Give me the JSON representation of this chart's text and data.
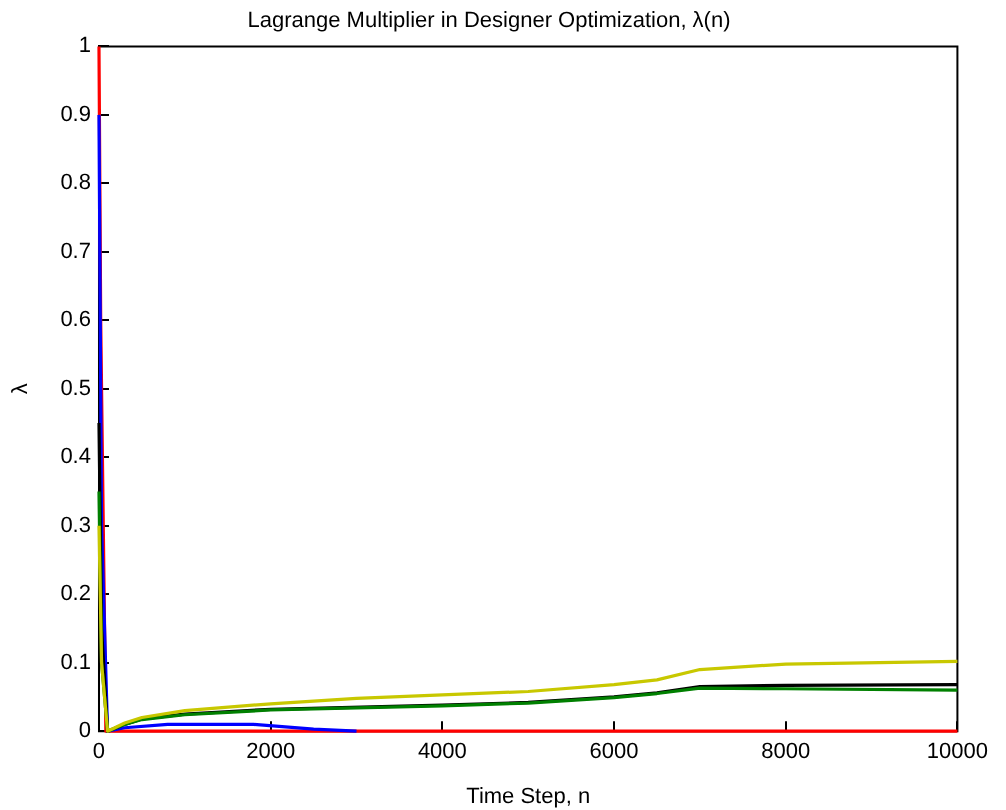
{
  "chart_data": {
    "type": "line",
    "title": "Lagrange Multiplier in Designer Optimization, λ(n)",
    "xlabel": "Time Step, n",
    "ylabel": "λ",
    "xlim": [
      0,
      10000
    ],
    "xticks": [
      0,
      2000,
      4000,
      6000,
      8000,
      10000
    ],
    "ylim": [
      0,
      1
    ],
    "yticks": [
      0,
      0.1,
      0.2,
      0.3,
      0.4,
      0.5,
      0.6,
      0.7,
      0.8,
      0.9,
      1
    ],
    "grid": false,
    "legend": false,
    "marker": "none",
    "line_style": "solid",
    "series": [
      {
        "color": "#c8c800",
        "x": [
          0,
          30,
          100,
          300,
          500,
          1000,
          2000,
          3000,
          4000,
          5000,
          6000,
          6500,
          7000,
          8000,
          10000
        ],
        "values": [
          0.3,
          0.1,
          0,
          0.012,
          0.02,
          0.03,
          0.04,
          0.048,
          0.053,
          0.058,
          0.068,
          0.075,
          0.09,
          0.098,
          0.102
        ]
      },
      {
        "color": "#008000",
        "x": [
          0,
          30,
          100,
          300,
          500,
          1000,
          2000,
          4000,
          5000,
          6000,
          6500,
          7000,
          8000,
          10000
        ],
        "values": [
          0.35,
          0.1,
          0,
          0.01,
          0.017,
          0.024,
          0.031,
          0.037,
          0.041,
          0.049,
          0.055,
          0.063,
          0.062,
          0.06
        ]
      },
      {
        "color": "#000000",
        "x": [
          0,
          30,
          100,
          300,
          500,
          1000,
          2000,
          4000,
          5000,
          6000,
          6500,
          7000,
          8000,
          10000
        ],
        "values": [
          0.45,
          0.15,
          0,
          0.01,
          0.018,
          0.025,
          0.032,
          0.038,
          0.042,
          0.05,
          0.056,
          0.065,
          0.067,
          0.068
        ]
      },
      {
        "color": "#0000ff",
        "x": [
          0,
          30,
          100,
          300,
          800,
          1800,
          2500,
          3000
        ],
        "values": [
          0.9,
          0.3,
          0,
          0.005,
          0.01,
          0.01,
          0.003,
          0
        ]
      },
      {
        "color": "#ff0000",
        "x": [
          0,
          20,
          80,
          10000
        ],
        "values": [
          1,
          0.6,
          0,
          0
        ]
      }
    ]
  }
}
